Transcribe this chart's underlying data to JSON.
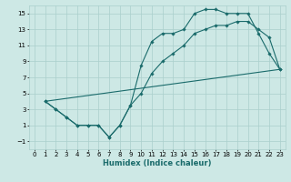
{
  "title": "",
  "xlabel": "Humidex (Indice chaleur)",
  "xlim": [
    -0.5,
    23.5
  ],
  "ylim": [
    -2,
    16
  ],
  "yticks": [
    -1,
    1,
    3,
    5,
    7,
    9,
    11,
    13,
    15
  ],
  "xticks": [
    0,
    1,
    2,
    3,
    4,
    5,
    6,
    7,
    8,
    9,
    10,
    11,
    12,
    13,
    14,
    15,
    16,
    17,
    18,
    19,
    20,
    21,
    22,
    23
  ],
  "bg_color": "#cde8e5",
  "line_color": "#1a6b6b",
  "grid_color": "#aacfcc",
  "curve1_x": [
    1,
    2,
    3,
    4,
    5,
    6,
    7,
    8,
    9,
    10,
    11,
    12,
    13,
    14,
    15,
    16,
    17,
    18,
    19,
    20,
    21,
    22,
    23
  ],
  "curve1_y": [
    4,
    3,
    2,
    1,
    1,
    1,
    -0.5,
    1,
    3.5,
    8.5,
    11.5,
    12.5,
    12.5,
    13,
    15,
    15.5,
    15.5,
    15,
    15,
    15,
    12.5,
    10,
    8
  ],
  "curve2_x": [
    1,
    2,
    3,
    4,
    5,
    6,
    7,
    8,
    9,
    10,
    11,
    12,
    13,
    14,
    15,
    16,
    17,
    18,
    19,
    20,
    21,
    22,
    23
  ],
  "curve2_y": [
    4,
    3,
    2,
    1,
    1,
    1,
    -0.5,
    1,
    3.5,
    5,
    7.5,
    9,
    10,
    11,
    12.5,
    13,
    13.5,
    13.5,
    14,
    14,
    13,
    12,
    8
  ],
  "curve3_x": [
    1,
    23
  ],
  "curve3_y": [
    4,
    8
  ]
}
